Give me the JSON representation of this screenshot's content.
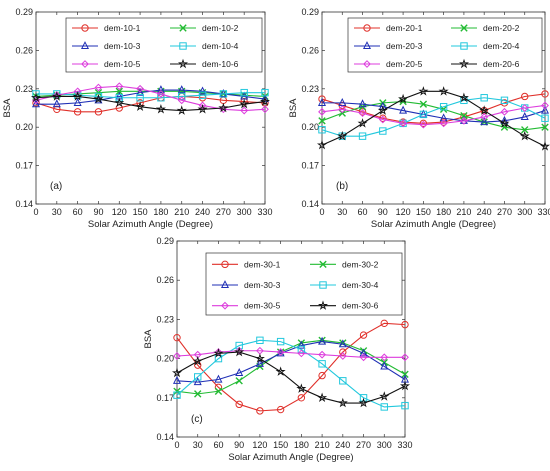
{
  "chart_data": [
    {
      "type": "line",
      "panel_label": "(a)",
      "xlabel": "Solar Azimuth Angle (Degree)",
      "ylabel": "BSA",
      "xlim": [
        0,
        330
      ],
      "ylim": [
        0.14,
        0.29
      ],
      "xticks": [
        "0",
        "30",
        "60",
        "90",
        "120",
        "150",
        "180",
        "210",
        "240",
        "270",
        "300",
        "330"
      ],
      "yticks": [
        "0.14",
        "0.17",
        "0.20",
        "0.23",
        "0.26",
        "0.29"
      ],
      "legend": "top-left",
      "x": [
        0,
        30,
        60,
        90,
        120,
        150,
        180,
        210,
        240,
        270,
        300,
        330
      ],
      "series": [
        {
          "name": "dem-10-1",
          "color": "#e0302a",
          "marker": "circle",
          "values": [
            0.219,
            0.214,
            0.212,
            0.212,
            0.215,
            0.219,
            0.223,
            0.224,
            0.223,
            0.221,
            0.22,
            0.219
          ]
        },
        {
          "name": "dem-10-2",
          "color": "#22bb33",
          "marker": "x",
          "values": [
            0.224,
            0.225,
            0.226,
            0.227,
            0.228,
            0.228,
            0.228,
            0.228,
            0.227,
            0.226,
            0.225,
            0.224
          ]
        },
        {
          "name": "dem-10-3",
          "color": "#1f2fb5",
          "marker": "triangle",
          "values": [
            0.218,
            0.218,
            0.219,
            0.221,
            0.224,
            0.227,
            0.229,
            0.229,
            0.228,
            0.226,
            0.224,
            0.222
          ]
        },
        {
          "name": "dem-10-4",
          "color": "#22c8dd",
          "marker": "square",
          "values": [
            0.226,
            0.226,
            0.225,
            0.224,
            0.223,
            0.223,
            0.223,
            0.224,
            0.225,
            0.226,
            0.227,
            0.227
          ]
        },
        {
          "name": "dem-10-5",
          "color": "#dd3ddd",
          "marker": "diamond",
          "values": [
            0.221,
            0.225,
            0.228,
            0.231,
            0.232,
            0.23,
            0.226,
            0.221,
            0.217,
            0.214,
            0.213,
            0.214
          ]
        },
        {
          "name": "dem-10-6",
          "color": "#111111",
          "marker": "star",
          "values": [
            0.223,
            0.224,
            0.224,
            0.222,
            0.219,
            0.216,
            0.214,
            0.213,
            0.214,
            0.215,
            0.218,
            0.22
          ]
        }
      ]
    },
    {
      "type": "line",
      "panel_label": "(b)",
      "xlabel": "Solar Azimuth Angle (Degree)",
      "ylabel": "BSA",
      "xlim": [
        0,
        330
      ],
      "ylim": [
        0.14,
        0.29
      ],
      "xticks": [
        "0",
        "30",
        "60",
        "90",
        "120",
        "150",
        "180",
        "210",
        "240",
        "270",
        "300",
        "330"
      ],
      "yticks": [
        "0.14",
        "0.17",
        "0.20",
        "0.23",
        "0.26",
        "0.29"
      ],
      "legend": "top",
      "x": [
        0,
        30,
        60,
        90,
        120,
        150,
        180,
        210,
        240,
        270,
        300,
        330
      ],
      "series": [
        {
          "name": "dem-20-1",
          "color": "#e0302a",
          "marker": "circle",
          "values": [
            0.222,
            0.217,
            0.212,
            0.207,
            0.204,
            0.203,
            0.204,
            0.208,
            0.213,
            0.219,
            0.224,
            0.226
          ]
        },
        {
          "name": "dem-20-2",
          "color": "#22bb33",
          "marker": "x",
          "values": [
            0.205,
            0.211,
            0.216,
            0.219,
            0.22,
            0.218,
            0.214,
            0.209,
            0.204,
            0.2,
            0.198,
            0.2
          ]
        },
        {
          "name": "dem-20-3",
          "color": "#1f2fb5",
          "marker": "triangle",
          "values": [
            0.219,
            0.219,
            0.218,
            0.216,
            0.213,
            0.21,
            0.207,
            0.205,
            0.204,
            0.205,
            0.208,
            0.213
          ]
        },
        {
          "name": "dem-20-4",
          "color": "#22c8dd",
          "marker": "square",
          "values": [
            0.198,
            0.193,
            0.193,
            0.197,
            0.203,
            0.21,
            0.216,
            0.221,
            0.223,
            0.221,
            0.215,
            0.207
          ]
        },
        {
          "name": "dem-20-5",
          "color": "#dd3ddd",
          "marker": "diamond",
          "values": [
            0.212,
            0.214,
            0.211,
            0.206,
            0.203,
            0.202,
            0.203,
            0.205,
            0.208,
            0.212,
            0.215,
            0.217
          ]
        },
        {
          "name": "dem-20-6",
          "color": "#111111",
          "marker": "star",
          "values": [
            0.186,
            0.193,
            0.203,
            0.213,
            0.222,
            0.228,
            0.228,
            0.223,
            0.213,
            0.203,
            0.193,
            0.185
          ]
        }
      ]
    },
    {
      "type": "line",
      "panel_label": "(c)",
      "xlabel": "Solar Azimuth Angle (Degree)",
      "ylabel": "BSA",
      "xlim": [
        0,
        330
      ],
      "ylim": [
        0.14,
        0.29
      ],
      "xticks": [
        "0",
        "30",
        "60",
        "90",
        "120",
        "150",
        "180",
        "210",
        "240",
        "270",
        "300",
        "330"
      ],
      "yticks": [
        "0.14",
        "0.17",
        "0.20",
        "0.23",
        "0.26",
        "0.29"
      ],
      "legend": "top",
      "x": [
        0,
        30,
        60,
        90,
        120,
        150,
        180,
        210,
        240,
        270,
        300,
        330
      ],
      "series": [
        {
          "name": "dem-30-1",
          "color": "#e0302a",
          "marker": "circle",
          "values": [
            0.216,
            0.195,
            0.178,
            0.165,
            0.16,
            0.161,
            0.17,
            0.187,
            0.205,
            0.218,
            0.227,
            0.226
          ]
        },
        {
          "name": "dem-30-2",
          "color": "#22bb33",
          "marker": "x",
          "values": [
            0.175,
            0.173,
            0.175,
            0.183,
            0.194,
            0.205,
            0.212,
            0.214,
            0.212,
            0.206,
            0.197,
            0.188
          ]
        },
        {
          "name": "dem-30-3",
          "color": "#1f2fb5",
          "marker": "triangle",
          "values": [
            0.183,
            0.182,
            0.184,
            0.189,
            0.196,
            0.204,
            0.21,
            0.213,
            0.211,
            0.204,
            0.194,
            0.184
          ]
        },
        {
          "name": "dem-30-4",
          "color": "#22c8dd",
          "marker": "square",
          "values": [
            0.172,
            0.186,
            0.2,
            0.21,
            0.214,
            0.213,
            0.207,
            0.196,
            0.183,
            0.17,
            0.163,
            0.164
          ]
        },
        {
          "name": "dem-30-5",
          "color": "#dd3ddd",
          "marker": "diamond",
          "values": [
            0.202,
            0.203,
            0.205,
            0.206,
            0.206,
            0.205,
            0.204,
            0.203,
            0.202,
            0.201,
            0.201,
            0.201
          ]
        },
        {
          "name": "dem-30-6",
          "color": "#111111",
          "marker": "star",
          "values": [
            0.189,
            0.198,
            0.204,
            0.205,
            0.2,
            0.19,
            0.177,
            0.17,
            0.166,
            0.166,
            0.171,
            0.179
          ]
        }
      ]
    }
  ]
}
